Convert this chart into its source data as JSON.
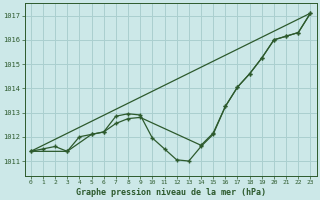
{
  "title": "Graphe pression niveau de la mer (hPa)",
  "background_color": "#cce8e8",
  "grid_color": "#aacfcf",
  "line_color": "#2d5a2d",
  "marker_color": "#2d5a2d",
  "xlim": [
    -0.5,
    23.5
  ],
  "ylim": [
    1010.4,
    1017.5
  ],
  "xticks": [
    0,
    1,
    2,
    3,
    4,
    5,
    6,
    7,
    8,
    9,
    10,
    11,
    12,
    13,
    14,
    15,
    16,
    17,
    18,
    19,
    20,
    21,
    22,
    23
  ],
  "yticks": [
    1011,
    1012,
    1013,
    1014,
    1015,
    1016,
    1017
  ],
  "series_main": {
    "x": [
      0,
      1,
      2,
      3,
      4,
      5,
      6,
      7,
      8,
      9,
      10,
      11,
      12,
      13,
      14,
      15,
      16,
      17,
      18,
      19,
      20,
      21,
      22,
      23
    ],
    "y": [
      1011.4,
      1011.5,
      1011.6,
      1011.4,
      1012.0,
      1012.1,
      1012.2,
      1012.85,
      1012.95,
      1012.9,
      1011.95,
      1011.5,
      1011.05,
      1011.0,
      1011.6,
      1012.1,
      1013.25,
      1014.05,
      1014.6,
      1015.25,
      1016.0,
      1016.15,
      1016.3,
      1017.1
    ]
  },
  "series_second": {
    "x": [
      0,
      3,
      5,
      6,
      7,
      8,
      9,
      14,
      15,
      16,
      17,
      18,
      19,
      20,
      21,
      22,
      23
    ],
    "y": [
      1011.4,
      1011.4,
      1012.1,
      1012.2,
      1012.55,
      1012.75,
      1012.8,
      1011.65,
      1012.15,
      1013.25,
      1014.05,
      1014.6,
      1015.25,
      1016.0,
      1016.15,
      1016.3,
      1017.1
    ]
  },
  "series_straight": {
    "x": [
      0,
      23
    ],
    "y": [
      1011.4,
      1017.1
    ]
  }
}
